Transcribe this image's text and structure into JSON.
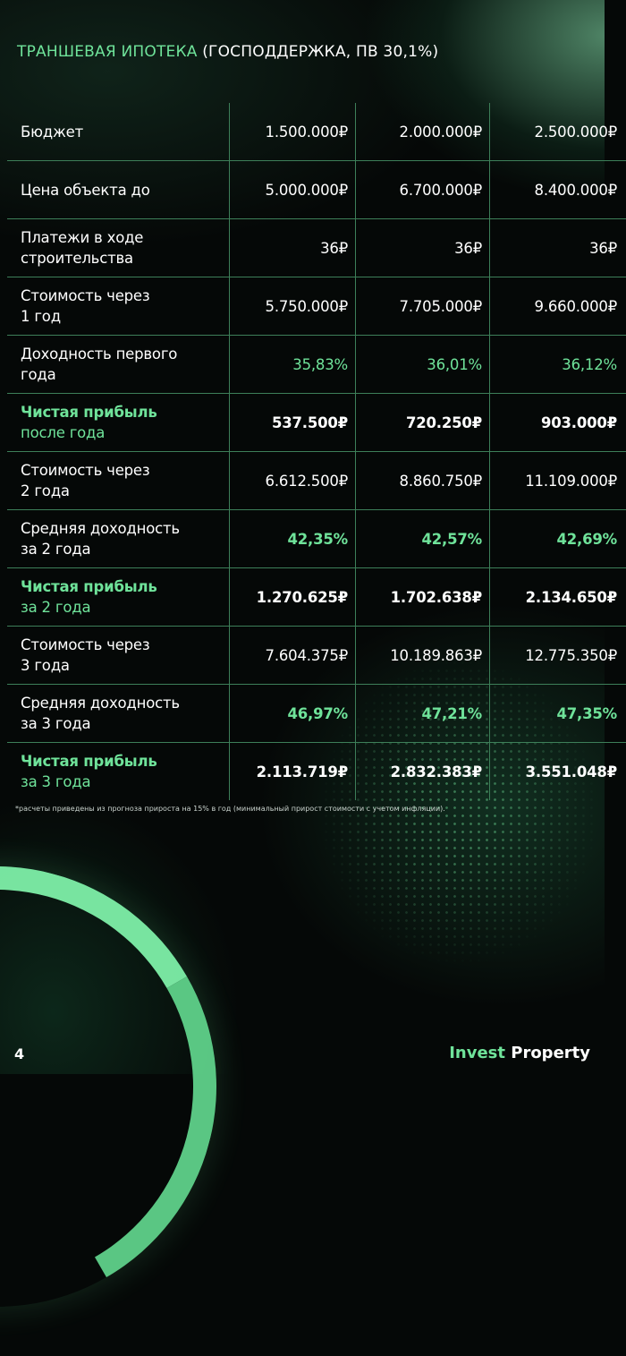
{
  "header": {
    "title_accent": "ТРАНШЕВАЯ ИПОТЕКА",
    "title_rest": " (ГОСПОДДЕРЖКА, ПВ 30,1%)"
  },
  "table": {
    "rows": [
      {
        "label": [
          "Бюджет"
        ],
        "values": [
          "1.500.000₽",
          "2.000.000₽",
          "2.500.000₽"
        ]
      },
      {
        "label": [
          "Цена объекта до"
        ],
        "values": [
          "5.000.000₽",
          "6.700.000₽",
          "8.400.000₽"
        ]
      },
      {
        "label": [
          "Платежи в ходе",
          "строительства"
        ],
        "values": [
          "36₽",
          "36₽",
          "36₽"
        ]
      },
      {
        "label": [
          "Стоимость через",
          "1 год"
        ],
        "values": [
          "5.750.000₽",
          "7.705.000₽",
          "9.660.000₽"
        ]
      },
      {
        "label": [
          "Доходность первого",
          "года"
        ],
        "values": [
          "35,83%",
          "36,01%",
          "36,12%"
        ]
      },
      {
        "label": [
          "Чистая прибыль",
          "после года"
        ],
        "values": [
          "537.500₽",
          "720.250₽",
          "903.000₽"
        ]
      },
      {
        "label": [
          "Стоимость через",
          "2 года"
        ],
        "values": [
          "6.612.500₽",
          "8.860.750₽",
          "11.109.000₽"
        ]
      },
      {
        "label": [
          "Средняя доходность",
          "за 2 года"
        ],
        "values": [
          "42,35%",
          "42,57%",
          "42,69%"
        ]
      },
      {
        "label": [
          "Чистая прибыль",
          "за 2 года"
        ],
        "values": [
          "1.270.625₽",
          "1.702.638₽",
          "2.134.650₽"
        ]
      },
      {
        "label": [
          "Стоимость через",
          "3 года"
        ],
        "values": [
          "7.604.375₽",
          "10.189.863₽",
          "12.775.350₽"
        ]
      },
      {
        "label": [
          "Средняя доходность",
          "за 3 года"
        ],
        "values": [
          "46,97%",
          "47,21%",
          "47,35%"
        ]
      },
      {
        "label": [
          "Чистая прибыль",
          "за 3 года"
        ],
        "values": [
          "2.113.719₽",
          "2.832.383₽",
          "3.551.048₽"
        ]
      }
    ]
  },
  "footnote": "*расчеты приведены из прогноза прироста на 15% в год (минимальный прирост стоимости с учетом инфляции).",
  "footer": {
    "page_number": "4",
    "brand_accent": "Invest",
    "brand_rest": " Property"
  },
  "colors": {
    "accent": "#6fe39a",
    "background": "#050807",
    "divider": "#3d7f59"
  }
}
